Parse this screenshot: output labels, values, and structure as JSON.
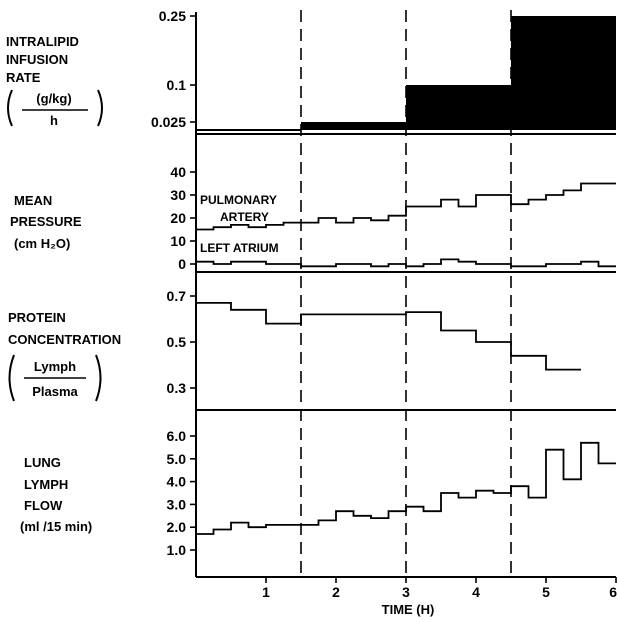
{
  "panels": {
    "infusion": {
      "label_lines": [
        "INTRALIPID",
        "INFUSION",
        "RATE"
      ],
      "unit_numerator": "(g/kg)",
      "unit_denominator": "h"
    },
    "pressure": {
      "label_lines": [
        "MEAN",
        "PRESSURE",
        "(cm H₂O)"
      ],
      "series_labels": [
        "PULMONARY",
        "ARTERY",
        "LEFT ATRIUM"
      ]
    },
    "protein": {
      "label_lines": [
        "PROTEIN",
        "CONCENTRATION"
      ],
      "unit_numerator": "Lymph",
      "unit_denominator": "Plasma"
    },
    "lymph": {
      "label_lines": [
        "LUNG",
        "LYMPH",
        "FLOW",
        "(ml /15 min)"
      ]
    }
  },
  "xaxis": {
    "label": "TIME (H)",
    "ticks": [
      "1",
      "2",
      "3",
      "4",
      "5",
      "6"
    ],
    "dashed_lines_at": [
      1.5,
      3,
      4.5
    ]
  },
  "chart_data": [
    {
      "type": "bar",
      "title": "INTRALIPID INFUSION RATE",
      "ylabel": "(g/kg)/h",
      "yticks": [
        "0.25",
        "0.1",
        "0.025"
      ],
      "segments": [
        {
          "x0": 0,
          "x1": 1.5,
          "value": 0
        },
        {
          "x0": 1.5,
          "x1": 3,
          "value": 0.025
        },
        {
          "x0": 3,
          "x1": 4.5,
          "value": 0.1
        },
        {
          "x0": 4.5,
          "x1": 6,
          "value": 0.25
        }
      ]
    },
    {
      "type": "line",
      "title": "MEAN PRESSURE",
      "ylabel": "cm H2O",
      "yticks": [
        "40",
        "30",
        "20",
        "10",
        "0"
      ],
      "ylim": [
        0,
        40
      ],
      "series": [
        {
          "name": "PULMONARY ARTERY",
          "x": [
            0,
            0.25,
            0.5,
            0.75,
            1,
            1.25,
            1.5,
            1.75,
            2,
            2.25,
            2.5,
            2.75,
            3,
            3.25,
            3.5,
            3.75,
            4,
            4.25,
            4.5,
            4.75,
            5,
            5.25,
            5.5,
            5.75,
            6
          ],
          "values": [
            15,
            16,
            17,
            16,
            17,
            18,
            18,
            20,
            18,
            20,
            19,
            21,
            25,
            25,
            28,
            25,
            30,
            30,
            26,
            28,
            30,
            32,
            35,
            35,
            35
          ]
        },
        {
          "name": "LEFT ATRIUM",
          "x": [
            0,
            0.25,
            0.5,
            0.75,
            1,
            1.25,
            1.5,
            1.75,
            2,
            2.25,
            2.5,
            2.75,
            3,
            3.25,
            3.5,
            3.75,
            4,
            4.25,
            4.5,
            4.75,
            5,
            5.25,
            5.5,
            5.75,
            6
          ],
          "values": [
            1,
            0,
            1,
            1,
            0,
            0,
            -1,
            -1,
            0,
            0,
            -1,
            0,
            -1,
            0,
            2,
            1,
            0,
            0,
            -1,
            -1,
            0,
            0,
            1,
            -1,
            -1
          ]
        }
      ]
    },
    {
      "type": "line",
      "title": "PROTEIN CONCENTRATION",
      "ylabel": "Lymph/Plasma",
      "yticks": [
        "0.7",
        "0.5",
        "0.3"
      ],
      "ylim": [
        0.2,
        0.75
      ],
      "x": [
        0,
        0.5,
        1,
        1.5,
        3,
        3.5,
        4,
        4.5,
        5
      ],
      "x_end": 5.5,
      "values": [
        0.67,
        0.64,
        0.58,
        0.62,
        0.63,
        0.55,
        0.5,
        0.44,
        0.38
      ]
    },
    {
      "type": "line",
      "title": "LUNG LYMPH FLOW",
      "ylabel": "ml/15 min",
      "yticks": [
        "6.0",
        "5.0",
        "4.0",
        "3.0",
        "2.0",
        "1.0"
      ],
      "ylim": [
        0.5,
        6.5
      ],
      "x": [
        0,
        0.25,
        0.5,
        0.75,
        1,
        1.25,
        1.5,
        1.75,
        2,
        2.25,
        2.5,
        2.75,
        3,
        3.25,
        3.5,
        3.75,
        4,
        4.25,
        4.5,
        4.75,
        5,
        5.25,
        5.5,
        5.75,
        6
      ],
      "values": [
        1.7,
        1.9,
        2.2,
        2.0,
        2.1,
        2.1,
        2.1,
        2.3,
        2.7,
        2.5,
        2.4,
        2.7,
        2.9,
        2.7,
        3.5,
        3.3,
        3.6,
        3.5,
        3.8,
        3.3,
        5.4,
        4.1,
        5.7,
        4.8,
        4.8
      ]
    }
  ]
}
